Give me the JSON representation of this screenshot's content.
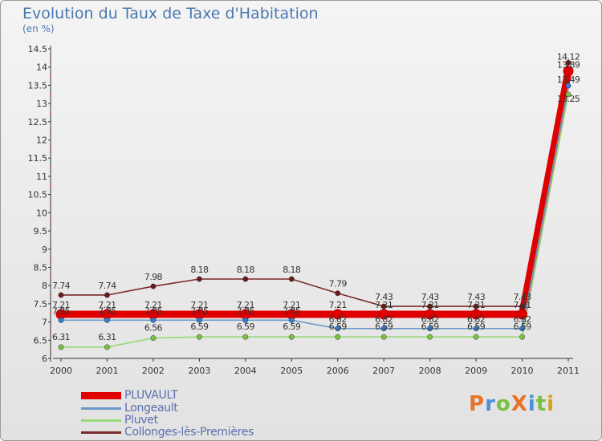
{
  "header": {
    "title": "Evolution du Taux de Taxe d'Habitation",
    "subtitle": "(en %)"
  },
  "brand": {
    "name": "ProXiti",
    "letters": [
      "P",
      "r",
      "o",
      "X",
      "i",
      "t",
      "i"
    ],
    "colors": [
      "#e8742a",
      "#4a90d9",
      "#7ac143",
      "#e8742a",
      "#4a90d9",
      "#7ac143",
      "#d4a017"
    ]
  },
  "chart_data": {
    "type": "line",
    "title": "Evolution du Taux de Taxe d'Habitation",
    "ylabel": "(en %)",
    "xlabel": "",
    "ylim": [
      6,
      14.5
    ],
    "grid": false,
    "legend_position": "bottom-left",
    "categories": [
      "2000",
      "2001",
      "2002",
      "2003",
      "2004",
      "2005",
      "2006",
      "2007",
      "2008",
      "2009",
      "2010",
      "2011"
    ],
    "y_ticks": [
      "6",
      "6.5",
      "7",
      "7.5",
      "8",
      "8.5",
      "9",
      "9.5",
      "10",
      "10.5",
      "11",
      "11.5",
      "12",
      "12.5",
      "13",
      "13.5",
      "14",
      "14.5"
    ],
    "series": [
      {
        "name": "Collonges-lès-Premières",
        "color": "#7a2a2a",
        "marker": "#6a1a1a",
        "values": [
          7.74,
          7.74,
          7.98,
          8.18,
          8.18,
          8.18,
          7.79,
          7.43,
          7.43,
          7.43,
          7.43,
          14.12
        ],
        "labels": [
          "7.74",
          "7.74",
          "7.98",
          "8.18",
          "8.18",
          "8.18",
          "7.79",
          "7.43",
          "7.43",
          "7.43",
          "7.43",
          "14.12"
        ]
      },
      {
        "name": "PLUVAULT",
        "color": "#e00000",
        "marker": "#e00000",
        "values": [
          7.21,
          7.21,
          7.21,
          7.21,
          7.21,
          7.21,
          7.21,
          7.21,
          7.21,
          7.21,
          7.21,
          13.89
        ],
        "labels": [
          "7.21",
          "7.21",
          "7.21",
          "7.21",
          "7.21",
          "7.21",
          "7.21",
          "7.21",
          "7.21",
          "7.21",
          "7.21",
          "13.89"
        ]
      },
      {
        "name": "Longeault",
        "color": "#6a9ac8",
        "marker": "#3a7ad0",
        "values": [
          7.05,
          7.05,
          7.05,
          7.05,
          7.05,
          7.05,
          6.82,
          6.82,
          6.82,
          6.82,
          6.82,
          13.49
        ],
        "labels": [
          "7.05",
          "7.05",
          "7.05",
          "7.05",
          "7.05",
          "7.05",
          "6.82",
          "6.82",
          "6.82",
          "6.82",
          "6.82",
          "13.49"
        ]
      },
      {
        "name": "Pluvet",
        "color": "#98d878",
        "marker": "#7ac143",
        "values": [
          6.31,
          6.31,
          6.56,
          6.59,
          6.59,
          6.59,
          6.59,
          6.59,
          6.59,
          6.59,
          6.59,
          13.25
        ],
        "labels": [
          "6.31",
          "6.31",
          "6.56",
          "6.59",
          "6.59",
          "6.59",
          "6.59",
          "6.59",
          "6.59",
          "6.59",
          "6.59",
          "13.25"
        ]
      }
    ],
    "legend": [
      "PLUVAULT",
      "Longeault",
      "Pluvet",
      "Collonges-lès-Premières"
    ]
  }
}
